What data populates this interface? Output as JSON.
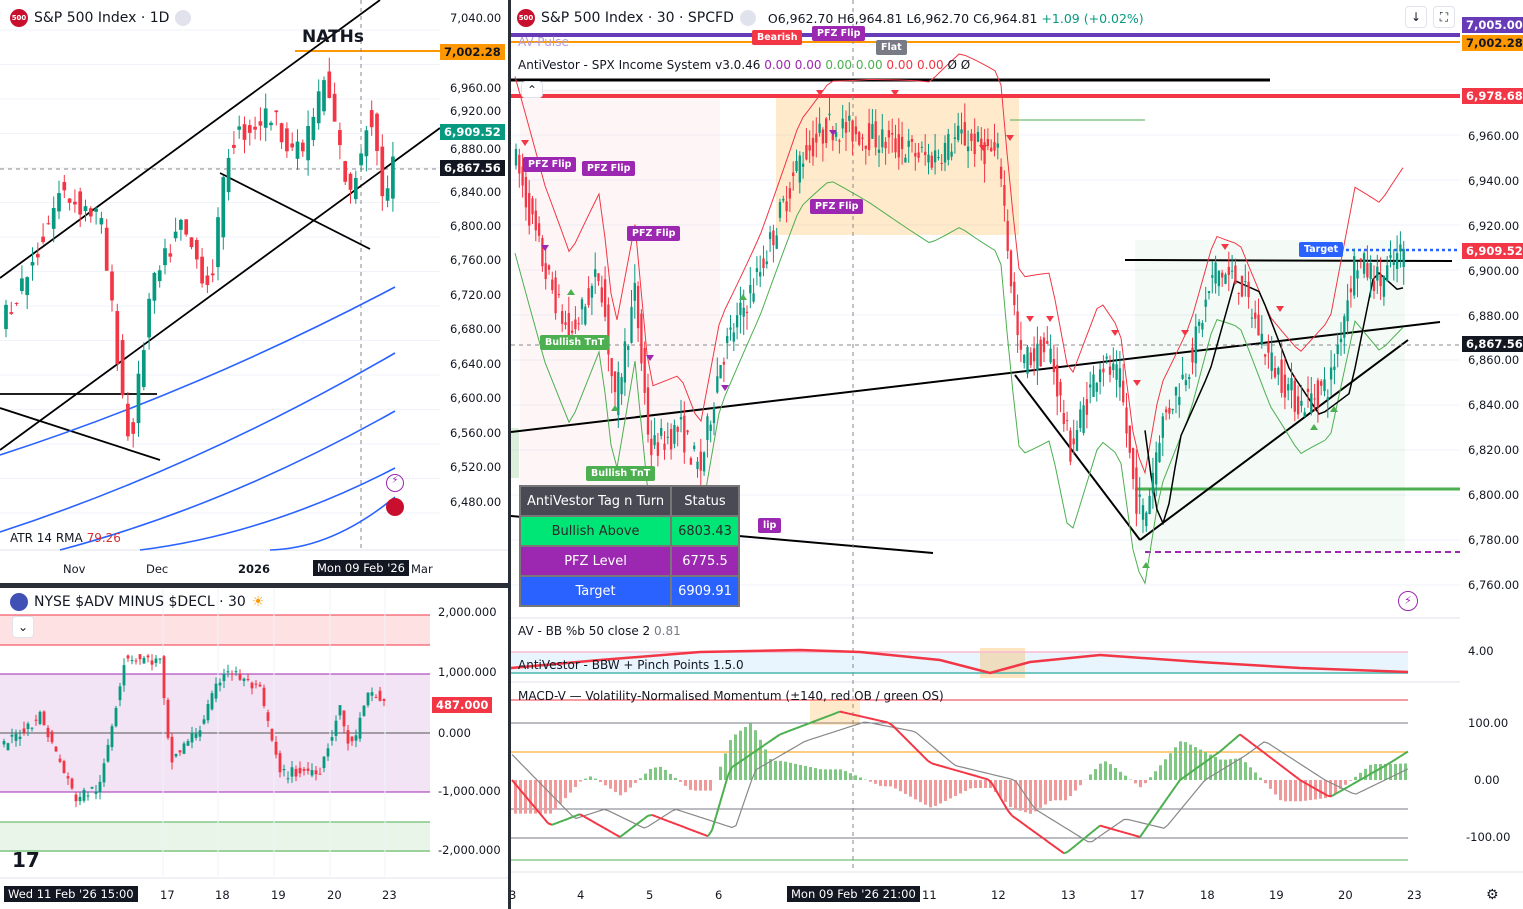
{
  "left_chart": {
    "title": "S&P 500 Index · 1D",
    "symbol_badge": "500",
    "annotation": "NATHs",
    "price_axis": [
      "7,040.00",
      "6,960.00",
      "6,920.00",
      "6,880.00",
      "6,840.00",
      "6,800.00",
      "6,760.00",
      "6,720.00",
      "6,680.00",
      "6,640.00",
      "6,600.00",
      "6,560.00",
      "6,520.00",
      "6,480.00"
    ],
    "price_tags": {
      "orange": "7,002.28",
      "last": "6,909.52",
      "crosshair": "6,867.56"
    },
    "indicator": {
      "name": "ATR 14 RMA",
      "value": "79.26"
    },
    "time_axis": [
      "Nov",
      "Dec",
      "2026",
      "Mar"
    ],
    "crosshair_time": "Mon 09 Feb '26",
    "closes": [
      [
        5,
        6700
      ],
      [
        30,
        6750
      ],
      [
        60,
        6840
      ],
      [
        100,
        6810
      ],
      [
        130,
        6540
      ],
      [
        150,
        6720
      ],
      [
        180,
        6800
      ],
      [
        210,
        6730
      ],
      [
        230,
        6900
      ],
      [
        270,
        6930
      ],
      [
        300,
        6880
      ],
      [
        325,
        6970
      ],
      [
        350,
        6830
      ],
      [
        370,
        6940
      ],
      [
        385,
        6820
      ],
      [
        397,
        6900
      ]
    ]
  },
  "breadth_chart": {
    "title": "NYSE $ADV MINUS $DECL · 30",
    "axis": [
      "2,000.000",
      "1,000.000",
      "0.000",
      "-1,000.000",
      "-2,000.000"
    ],
    "last_tag": "487.000",
    "time_axis": [
      "17",
      "18",
      "19",
      "20",
      "23"
    ],
    "crosshair_time": "Wed 11 Feb '26  15:00",
    "values": [
      [
        5,
        -200
      ],
      [
        40,
        300
      ],
      [
        75,
        -1100
      ],
      [
        100,
        -900
      ],
      [
        125,
        1300
      ],
      [
        160,
        1200
      ],
      [
        170,
        -500
      ],
      [
        200,
        100
      ],
      [
        225,
        1100
      ],
      [
        260,
        700
      ],
      [
        280,
        -700
      ],
      [
        320,
        -600
      ],
      [
        340,
        400
      ],
      [
        350,
        -300
      ],
      [
        370,
        700
      ],
      [
        385,
        500
      ]
    ]
  },
  "main_chart": {
    "title": "S&P 500 Index · 30 · SPCFD",
    "symbol_badge": "500",
    "ohlc": {
      "o": "O6,962.70",
      "h": "H6,964.81",
      "l": "L6,962.70",
      "c": "C6,964.81",
      "chg": "+1.09 (+0.02%)"
    },
    "overlay_labels": {
      "pulse": "AV-Pulse",
      "bearish": "Bearish",
      "pfz_flip_top": "PFZ Flip",
      "flat": "Flat"
    },
    "indicator": {
      "name": "AntiVestor - SPX Income System v3.0.46",
      "values": [
        "0.00",
        "0.00",
        "0.00",
        "0.00",
        "0.00",
        "0.00",
        "Ø",
        "Ø"
      ]
    },
    "price_axis": [
      "6,960.00",
      "6,940.00",
      "6,920.00",
      "6,900.00",
      "6,880.00",
      "6,860.00",
      "6,840.00",
      "6,820.00",
      "6,800.00",
      "6,780.00",
      "6,760.00"
    ],
    "price_tags": {
      "purple": "7,005.00",
      "orange": "7,002.28",
      "red": "6,978.68",
      "last": "6,909.52",
      "crosshair": "6,867.56"
    },
    "pills": {
      "pfz1": "PFZ Flip",
      "pfz2": "PFZ Flip",
      "pfz3": "PFZ Flip",
      "pfz4": "PFZ Flip",
      "tnt1": "Bullish TnT",
      "tnt2": "Bullish TnT",
      "target": "Target",
      "flip_partial": "lip"
    },
    "table": {
      "header": [
        "AntiVestor Tag n Turn",
        "Status"
      ],
      "rows": [
        [
          "Bullish Above",
          "6803.43"
        ],
        [
          "PFZ Level",
          "6775.5"
        ],
        [
          "Target",
          "6909.91"
        ]
      ]
    },
    "closes": [
      [
        515,
        6950
      ],
      [
        545,
        6900
      ],
      [
        570,
        6870
      ],
      [
        600,
        6900
      ],
      [
        615,
        6840
      ],
      [
        635,
        6890
      ],
      [
        650,
        6820
      ],
      [
        680,
        6830
      ],
      [
        700,
        6810
      ],
      [
        720,
        6860
      ],
      [
        760,
        6900
      ],
      [
        800,
        6950
      ],
      [
        830,
        6965
      ],
      [
        870,
        6960
      ],
      [
        930,
        6950
      ],
      [
        960,
        6960
      ],
      [
        1000,
        6950
      ],
      [
        1010,
        6900
      ],
      [
        1020,
        6860
      ],
      [
        1050,
        6865
      ],
      [
        1070,
        6820
      ],
      [
        1100,
        6860
      ],
      [
        1120,
        6850
      ],
      [
        1135,
        6800
      ],
      [
        1145,
        6790
      ],
      [
        1160,
        6830
      ],
      [
        1190,
        6860
      ],
      [
        1215,
        6900
      ],
      [
        1240,
        6895
      ],
      [
        1270,
        6860
      ],
      [
        1300,
        6840
      ],
      [
        1330,
        6850
      ],
      [
        1355,
        6905
      ],
      [
        1380,
        6895
      ],
      [
        1405,
        6910
      ]
    ]
  },
  "bb_panel": {
    "name": "AV - BB %b 50 close 2",
    "value": "0.81"
  },
  "bbw_panel": {
    "name": "AntiVestor - BBW + Pinch Points 1.5.0",
    "axis": "4.00"
  },
  "macd_panel": {
    "name": "MACD-V — Volatility-Normalised Momentum (±140, red OB / green OS)",
    "axis": [
      "100.00",
      "0.00",
      "-100.00"
    ],
    "values": [
      [
        512,
        0
      ],
      [
        550,
        -80
      ],
      [
        580,
        -60
      ],
      [
        620,
        -100
      ],
      [
        650,
        -60
      ],
      [
        710,
        -100
      ],
      [
        730,
        20
      ],
      [
        780,
        80
      ],
      [
        840,
        120
      ],
      [
        890,
        100
      ],
      [
        930,
        30
      ],
      [
        990,
        0
      ],
      [
        1010,
        -60
      ],
      [
        1065,
        -130
      ],
      [
        1100,
        -80
      ],
      [
        1140,
        -100
      ],
      [
        1180,
        0
      ],
      [
        1220,
        50
      ],
      [
        1240,
        80
      ],
      [
        1270,
        40
      ],
      [
        1300,
        0
      ],
      [
        1330,
        -30
      ],
      [
        1360,
        0
      ],
      [
        1390,
        30
      ],
      [
        1408,
        50
      ]
    ]
  },
  "main_time_axis": {
    "labels": [
      "3",
      "4",
      "5",
      "6",
      "11",
      "12",
      "13",
      "17",
      "18",
      "19",
      "20",
      "23"
    ],
    "crosshair_time": "Mon 09 Feb '26  21:00"
  },
  "colors": {
    "up": "#089981",
    "down": "#f23645",
    "purple": "#673ab7",
    "orange": "#ff9800",
    "blue": "#2962ff"
  }
}
